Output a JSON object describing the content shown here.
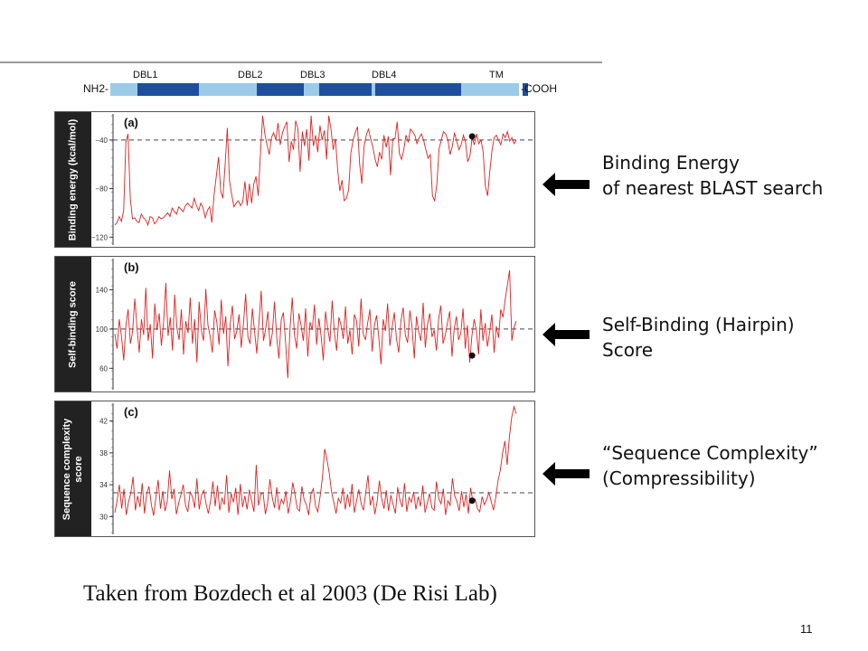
{
  "protein_map": {
    "left_label": "NH2-",
    "right_label": "-COOH",
    "domains": [
      {
        "label": "DBL1"
      },
      {
        "label": "DBL2"
      },
      {
        "label": "DBL3"
      },
      {
        "label": "DBL4"
      },
      {
        "label": "TM"
      }
    ],
    "colors": {
      "domain": "#1d4f9c",
      "linker": "#9ccbea"
    }
  },
  "chart_data": [
    {
      "type": "line",
      "panel_label": "(a)",
      "ylabel": "Binding energy (kcal/mol)",
      "yticks": [
        "−120",
        "−80",
        "−40"
      ],
      "ylim": [
        -125,
        -20
      ],
      "threshold": -40,
      "marker": {
        "x": 0.89,
        "y": -37
      },
      "series_color": "#e02020",
      "series": [
        {
          "name": "",
          "values": [
            -110,
            -108,
            -103,
            -107,
            -98,
            -42,
            -35,
            -88,
            -105,
            -104,
            -107,
            -108,
            -101,
            -104,
            -106,
            -110,
            -103,
            -104,
            -109,
            -107,
            -103,
            -105,
            -104,
            -102,
            -100,
            -103,
            -96,
            -99,
            -101,
            -95,
            -97,
            -99,
            -94,
            -92,
            -94,
            -96,
            -88,
            -94,
            -98,
            -92,
            -96,
            -104,
            -98,
            -95,
            -108,
            -85,
            -70,
            -54,
            -82,
            -88,
            -60,
            -30,
            -74,
            -85,
            -95,
            -92,
            -90,
            -94,
            -91,
            -74,
            -94,
            -76,
            -92,
            -76,
            -70,
            -86,
            -52,
            -20,
            -35,
            -44,
            -52,
            -38,
            -34,
            -40,
            -26,
            -44,
            -34,
            -29,
            -25,
            -58,
            -41,
            -48,
            -24,
            -31,
            -66,
            -33,
            -45,
            -31,
            -57,
            -20,
            -45,
            -36,
            -50,
            -28,
            -40,
            -32,
            -56,
            -20,
            -31,
            -48,
            -39,
            -64,
            -82,
            -73,
            -90,
            -88,
            -81,
            -51,
            -40,
            -34,
            -29,
            -60,
            -76,
            -45,
            -36,
            -31,
            -39,
            -46,
            -56,
            -62,
            -50,
            -56,
            -36,
            -46,
            -37,
            -69,
            -39,
            -39,
            -25,
            -51,
            -56,
            -48,
            -36,
            -42,
            -31,
            -33,
            -36,
            -43,
            -38,
            -35,
            -40,
            -48,
            -55,
            -52,
            -86,
            -90,
            -76,
            -47,
            -40,
            -33,
            -35,
            -40,
            -52,
            -45,
            -34,
            -41,
            -48,
            -44,
            -36,
            -42,
            -58,
            -53,
            -38,
            -44,
            -35,
            -43,
            -40,
            -50,
            -78,
            -86,
            -66,
            -48,
            -38,
            -36,
            -40,
            -44,
            -35,
            -38,
            -33,
            -41,
            -38,
            -43,
            -40
          ]
        }
      ]
    },
    {
      "type": "line",
      "panel_label": "(b)",
      "ylabel": "Self-binding score",
      "yticks": [
        "140",
        "100",
        "60"
      ],
      "ylim": [
        40,
        170
      ],
      "threshold": 100,
      "marker": {
        "x": 0.89,
        "y": 73
      },
      "series_color": "#e02020",
      "series": [
        {
          "name": "",
          "values": [
            95,
            80,
            110,
            92,
            68,
            104,
            120,
            85,
            97,
            131,
            102,
            76,
            110,
            94,
            142,
            88,
            105,
            70,
            126,
            99,
            116,
            83,
            108,
            147,
            93,
            112,
            78,
            135,
            101,
            89,
            120,
            74,
            108,
            96,
            132,
            85,
            110,
            66,
            128,
            99,
            88,
            141,
            104,
            92,
            76,
            119,
            107,
            84,
            130,
            95,
            113,
            62,
            105,
            124,
            90,
            98,
            115,
            81,
            106,
            136,
            92,
            85,
            121,
            98,
            75,
            107,
            139,
            88,
            100,
            118,
            82,
            96,
            128,
            91,
            70,
            109,
            117,
            86,
            50,
            101,
            132,
            94,
            80,
            116,
            103,
            88,
            121,
            72,
            107,
            99,
            125,
            84,
            111,
            93,
            68,
            118,
            100,
            87,
            129,
            96,
            78,
            112,
            104,
            90,
            123,
            85,
            99,
            74,
            115,
            108,
            82,
            131,
            95,
            89,
            106,
            120,
            77,
            103,
            114,
            92,
            64,
            110,
            98,
            126,
            83,
            101,
            117,
            90,
            76,
            108,
            122,
            94,
            86,
            119,
            102,
            70,
            113,
            97,
            88,
            127,
            81,
            105,
            116,
            92,
            99,
            78,
            110,
            124,
            85,
            94,
            107,
            118,
            72,
            100,
            113,
            89,
            96,
            121,
            80,
            104,
            66,
            93,
            110,
            99,
            74,
            120,
            88,
            106,
            82,
            97,
            115,
            76,
            103,
            91,
            120,
            112,
            130,
            145,
            160,
            88,
            102,
            108
          ]
        }
      ]
    },
    {
      "type": "line",
      "panel_label": "(c)",
      "ylabel": "Sequence complexity score",
      "yticks": [
        "42",
        "38",
        "34",
        "30"
      ],
      "ylim": [
        28,
        44
      ],
      "threshold": 33,
      "marker": {
        "x": 0.89,
        "y": 32
      },
      "series_color": "#e02020",
      "series": [
        {
          "name": "",
          "values": [
            30.5,
            32,
            34,
            31,
            33.5,
            30.2,
            31.8,
            33,
            35,
            30.8,
            32.6,
            31.2,
            34.2,
            30.4,
            32.9,
            33.8,
            31.5,
            30.1,
            32.4,
            34.6,
            31,
            33.2,
            30.7,
            31.9,
            35.8,
            32.2,
            33.5,
            30.3,
            31.7,
            32.8,
            34,
            31.4,
            30.6,
            33.1,
            32.5,
            31.1,
            34.8,
            30.9,
            32.7,
            33.3,
            31.6,
            30.4,
            32.1,
            34.4,
            31.3,
            33.9,
            30.8,
            32.3,
            31.5,
            35.2,
            30.5,
            32.9,
            31.8,
            33.6,
            30.2,
            34.1,
            31.2,
            32.6,
            30.9,
            33.4,
            31.9,
            30.6,
            36.5,
            31.4,
            32.8,
            33,
            30.3,
            31.7,
            34.7,
            32.4,
            31.1,
            33.7,
            30.8,
            32.2,
            31.6,
            33.2,
            30.4,
            31.9,
            34.3,
            32.7,
            31,
            30.7,
            33.8,
            32.1,
            31.5,
            30.2,
            32.9,
            33.5,
            31.3,
            30.6,
            32.5,
            34.9,
            38.5,
            37.2,
            35.5,
            33.1,
            31.8,
            30.4,
            32.3,
            31.7,
            33.6,
            30.9,
            32.8,
            31.2,
            34.1,
            30.5,
            32,
            33.4,
            31.6,
            30.8,
            33,
            35.2,
            31.4,
            32.6,
            30.3,
            31.9,
            34.5,
            32.2,
            31,
            33.3,
            30.7,
            32.7,
            31.5,
            30.4,
            33.7,
            32.1,
            31.2,
            34.2,
            30.6,
            32.4,
            31.8,
            33.1,
            30.9,
            32.5,
            31.3,
            33.9,
            30.5,
            31.7,
            32.9,
            31.1,
            30.8,
            34.4,
            32.3,
            31.6,
            33.5,
            30.2,
            32,
            31.4,
            34.8,
            32.6,
            31.9,
            30.7,
            33.2,
            31.2,
            32.8,
            30.4,
            33.6,
            31.8,
            32.2,
            31,
            30.6,
            32.5,
            31.5,
            32.1,
            33,
            31.9,
            30.8,
            32.4,
            34.5,
            35.8,
            38,
            39.5,
            36.5,
            40,
            42.5,
            43.8,
            42.9
          ]
        }
      ]
    }
  ],
  "annotations": [
    {
      "line1": "Binding Energy",
      "line2": "of nearest BLAST search"
    },
    {
      "line1": "Self-Binding (Hairpin)",
      "line2": "Score"
    },
    {
      "line1": "“Sequence Complexity”",
      "line2": "(Compressibility)"
    }
  ],
  "caption": "Taken from Bozdech et al 2003 (De Risi Lab)",
  "page_number": "11"
}
